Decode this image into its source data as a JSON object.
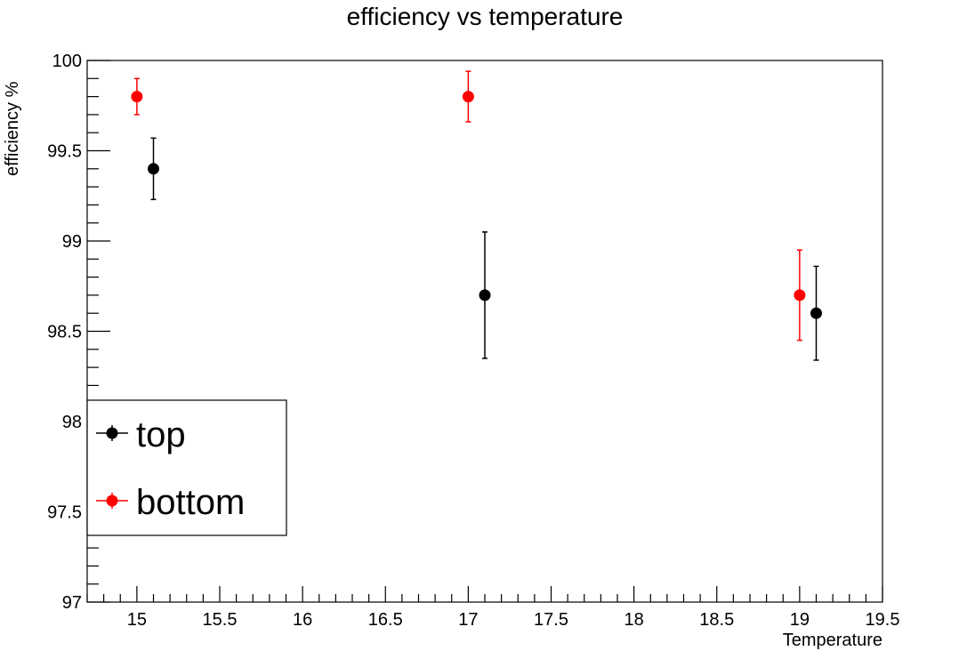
{
  "chart_data": {
    "type": "scatter",
    "title": "efficiency vs temperature",
    "xlabel": "Temperature",
    "ylabel": "efficiency %",
    "xlim": [
      14.7,
      19.5
    ],
    "ylim": [
      97,
      100
    ],
    "x_ticks": [
      15,
      15.5,
      16,
      16.5,
      17,
      17.5,
      18,
      18.5,
      19,
      19.5
    ],
    "x_tick_labels": [
      "15",
      "15.5",
      "16",
      "16.5",
      "17",
      "17.5",
      "18",
      "18.5",
      "19",
      "19.5"
    ],
    "y_ticks": [
      97,
      97.5,
      98,
      98.5,
      99,
      99.5,
      100
    ],
    "y_tick_labels": [
      "97",
      "97.5",
      "98",
      "98.5",
      "99",
      "99.5",
      "100"
    ],
    "grid": false,
    "legend_position": "lower-left",
    "series": [
      {
        "name": "top",
        "color": "#000000",
        "x": [
          15.1,
          17.1,
          19.1
        ],
        "y": [
          99.4,
          98.7,
          98.6
        ],
        "yerr": [
          0.17,
          0.35,
          0.26
        ]
      },
      {
        "name": "bottom",
        "color": "#ff0000",
        "x": [
          15.0,
          17.0,
          19.0
        ],
        "y": [
          99.8,
          99.8,
          98.7
        ],
        "yerr": [
          0.1,
          0.14,
          0.25
        ]
      }
    ]
  }
}
